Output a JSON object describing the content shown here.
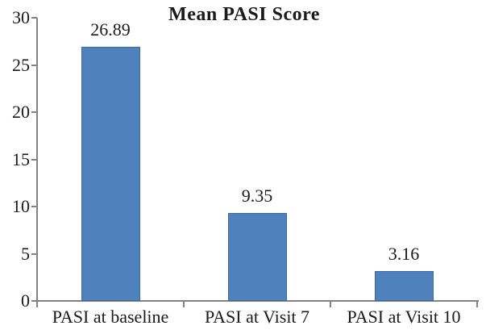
{
  "chart_data": {
    "type": "bar",
    "title": "Mean PASI Score",
    "categories": [
      "PASI at baseline",
      "PASI at Visit 7",
      "PASI at Visit 10"
    ],
    "values": [
      26.89,
      9.35,
      3.16
    ],
    "value_labels": [
      "26.89",
      "9.35",
      "3.16"
    ],
    "xlabel": "",
    "ylabel": "",
    "ylim": [
      0,
      30
    ],
    "yticks": [
      0,
      5,
      10,
      15,
      20,
      25,
      30
    ],
    "grid": false,
    "legend": "none",
    "bar_color": "#4f81bd",
    "bar_border_color": "#41699f",
    "axis_color": "#828282",
    "text_color": "#1a1a1a",
    "background": "#ffffff"
  }
}
